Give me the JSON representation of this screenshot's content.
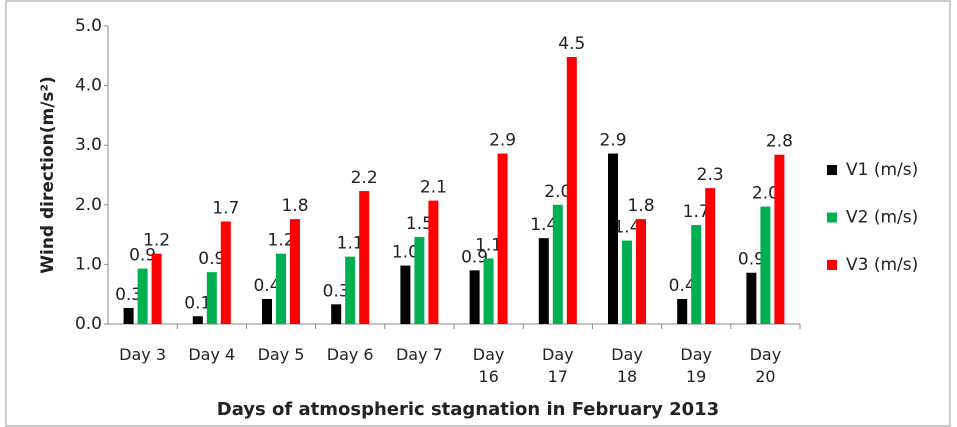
{
  "chart_data": {
    "type": "bar",
    "x_label": "Days of atmospheric stagnation in February 2013",
    "y_label": "Wind direction(m/s²)",
    "categories": [
      "Day 3",
      "Day 4",
      "Day 5",
      "Day 6",
      "Day 7",
      "Day 16",
      "Day 17",
      "Day 18",
      "Day 19",
      "Day 20"
    ],
    "series": [
      {
        "name": "V1 (m/s)",
        "color": "#000000",
        "values": [
          0.27,
          0.13,
          0.42,
          0.33,
          0.98,
          0.9,
          1.44,
          2.86,
          0.42,
          0.86
        ],
        "value_labels": [
          "0.3",
          "0.1",
          "0.4",
          "0.3",
          "1.0",
          "0.9",
          "1.4",
          "2.9",
          "0.4",
          "0.9"
        ]
      },
      {
        "name": "V2 (m/s)",
        "color": "#00b050",
        "values": [
          0.93,
          0.87,
          1.18,
          1.13,
          1.46,
          1.1,
          2.0,
          1.4,
          1.66,
          1.97
        ],
        "value_labels": [
          "0.9",
          "0.9",
          "1.2",
          "1.1",
          "1.5",
          "1.1",
          "2.0",
          "1.4",
          "1.7",
          "2.0"
        ]
      },
      {
        "name": "V3 (m/s)",
        "color": "#ff0000",
        "values": [
          1.18,
          1.72,
          1.76,
          2.23,
          2.07,
          2.86,
          4.48,
          1.76,
          2.28,
          2.84
        ],
        "value_labels": [
          "1.2",
          "1.7",
          "1.8",
          "2.2",
          "2.1",
          "2.9",
          "4.5",
          "1.8",
          "2.3",
          "2.8"
        ]
      }
    ],
    "ylim": [
      0,
      5
    ],
    "yticks": [
      {
        "value": 0,
        "label": "0.0"
      },
      {
        "value": 1,
        "label": "1.0"
      },
      {
        "value": 2,
        "label": "2.0"
      },
      {
        "value": 3,
        "label": "3.0"
      },
      {
        "value": 4,
        "label": "4.0"
      },
      {
        "value": 5,
        "label": "5.0"
      }
    ],
    "legend": "right"
  }
}
